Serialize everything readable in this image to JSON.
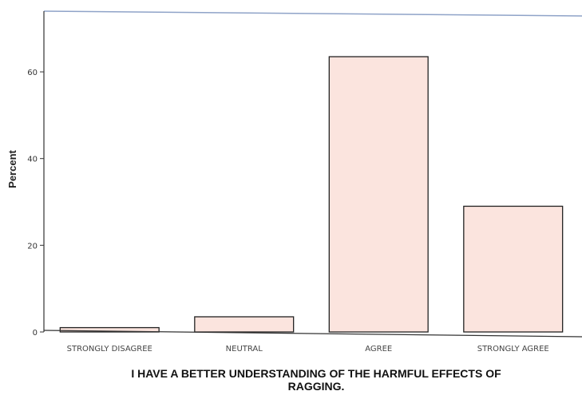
{
  "chart_data": {
    "type": "bar",
    "categories": [
      "STRONGLY DISAGREE",
      "NEUTRAL",
      "AGREE",
      "STRONGLY AGREE"
    ],
    "values": [
      1,
      3.5,
      63.5,
      29
    ],
    "xlabel_lines": [
      "I HAVE A BETTER UNDERSTANDING OF THE HARMFUL EFFECTS OF",
      "RAGGING."
    ],
    "ylabel": "Percent",
    "ylim": [
      0,
      74
    ],
    "yticks": [
      0,
      20,
      40,
      60
    ],
    "grid": false,
    "bar_color": "#fbe4de",
    "bar_edge_color": "#222222"
  }
}
